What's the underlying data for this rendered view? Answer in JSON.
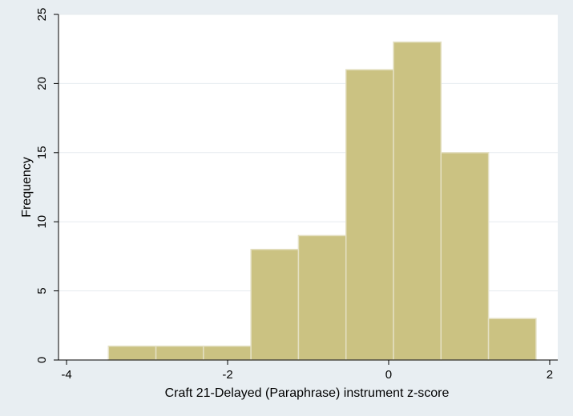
{
  "chart_data": {
    "type": "bar",
    "histogram": true,
    "title": "",
    "xlabel": "Craft 21-Delayed (Paraphrase) instrument z-score",
    "ylabel": "Frequency",
    "xlim": [
      -4.1,
      2.1
    ],
    "ylim": [
      0,
      25
    ],
    "x_ticks": [
      -4,
      -2,
      0,
      2
    ],
    "x_tick_labels": [
      "-4",
      "-2",
      "0",
      "2"
    ],
    "y_ticks": [
      0,
      5,
      10,
      15,
      20,
      25
    ],
    "y_tick_labels": [
      "0",
      "5",
      "10",
      "15",
      "20",
      "25"
    ],
    "grid": "horizontal",
    "bins": [
      {
        "x0": -3.48,
        "x1": -2.89,
        "value": 1
      },
      {
        "x0": -2.89,
        "x1": -2.3,
        "value": 1
      },
      {
        "x0": -2.3,
        "x1": -1.71,
        "value": 1
      },
      {
        "x0": -1.71,
        "x1": -1.12,
        "value": 8
      },
      {
        "x0": -1.12,
        "x1": -0.53,
        "value": 9
      },
      {
        "x0": -0.53,
        "x1": 0.06,
        "value": 21
      },
      {
        "x0": 0.06,
        "x1": 0.65,
        "value": 23
      },
      {
        "x0": 0.65,
        "x1": 1.24,
        "value": 15
      },
      {
        "x0": 1.24,
        "x1": 1.83,
        "value": 3
      }
    ],
    "colors": {
      "bar_fill": "#cbc282",
      "bar_edge": "#e4e0c3",
      "page_background": "#e8eef2",
      "plot_background": "#ffffff",
      "grid": "#e6ebef",
      "axis": "#000000"
    }
  }
}
